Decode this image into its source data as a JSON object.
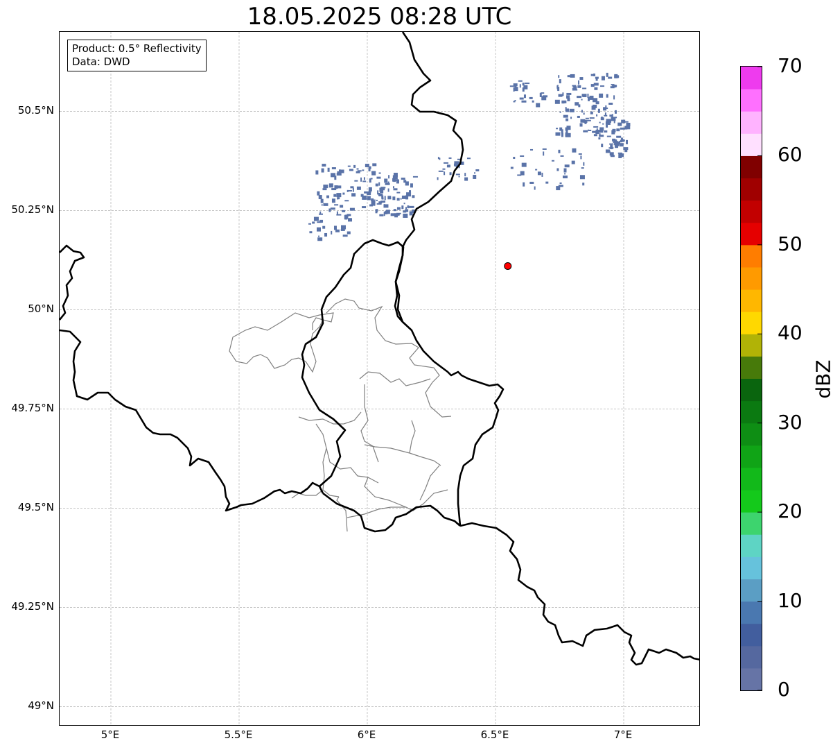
{
  "title": "18.05.2025 08:28 UTC",
  "info": {
    "product": "Product: 0.5° Reflectivity",
    "data_source": "Data: DWD"
  },
  "map": {
    "lon_range": [
      4.8,
      7.3
    ],
    "lat_range": [
      48.95,
      50.7
    ],
    "grid": true,
    "lon_ticks": [
      {
        "value": 5.0,
        "label": "5°E"
      },
      {
        "value": 5.5,
        "label": "5.5°E"
      },
      {
        "value": 6.0,
        "label": "6°E"
      },
      {
        "value": 6.5,
        "label": "6.5°E"
      },
      {
        "value": 7.0,
        "label": "7°E"
      }
    ],
    "lat_ticks": [
      {
        "value": 50.5,
        "label": "50.5°N"
      },
      {
        "value": 50.25,
        "label": "50.25°N"
      },
      {
        "value": 50.0,
        "label": "50°N"
      },
      {
        "value": 49.75,
        "label": "49.75°N"
      },
      {
        "value": 49.5,
        "label": "49.5°N"
      },
      {
        "value": 49.25,
        "label": "49.25°N"
      },
      {
        "value": 49.0,
        "label": "49°N"
      }
    ],
    "radar_site": {
      "lon": 6.548,
      "lat": 50.11,
      "color": "#ff0000"
    },
    "echo_color": "#5a73a8",
    "echo_clusters": [
      {
        "lon": 5.95,
        "lat": 50.31,
        "spread_lon": 0.16,
        "spread_lat": 0.06,
        "count": 90
      },
      {
        "lon": 6.1,
        "lat": 50.29,
        "spread_lon": 0.08,
        "spread_lat": 0.05,
        "count": 60
      },
      {
        "lon": 5.85,
        "lat": 50.22,
        "spread_lon": 0.08,
        "spread_lat": 0.04,
        "count": 30
      },
      {
        "lon": 6.35,
        "lat": 50.36,
        "spread_lon": 0.08,
        "spread_lat": 0.03,
        "count": 25
      },
      {
        "lon": 6.85,
        "lat": 50.52,
        "spread_lon": 0.12,
        "spread_lat": 0.08,
        "count": 120
      },
      {
        "lon": 6.95,
        "lat": 50.44,
        "spread_lon": 0.06,
        "spread_lat": 0.05,
        "count": 50
      },
      {
        "lon": 6.62,
        "lat": 50.55,
        "spread_lon": 0.07,
        "spread_lat": 0.03,
        "count": 25
      },
      {
        "lon": 6.7,
        "lat": 50.36,
        "spread_lon": 0.15,
        "spread_lat": 0.05,
        "count": 35
      }
    ]
  },
  "colorbar": {
    "unit": "dBZ",
    "min": 0,
    "max": 70,
    "ticks": [
      {
        "value": 0,
        "label": "0"
      },
      {
        "value": 10,
        "label": "10"
      },
      {
        "value": 20,
        "label": "20"
      },
      {
        "value": 30,
        "label": "30"
      },
      {
        "value": 40,
        "label": "40"
      },
      {
        "value": 50,
        "label": "50"
      },
      {
        "value": 60,
        "label": "60"
      },
      {
        "value": 70,
        "label": "70"
      }
    ],
    "bins": [
      {
        "from": 0,
        "to": 2.5,
        "color": "#6674a6"
      },
      {
        "from": 2.5,
        "to": 5,
        "color": "#55689f"
      },
      {
        "from": 5,
        "to": 7.5,
        "color": "#425e9e"
      },
      {
        "from": 7.5,
        "to": 10,
        "color": "#4a78b0"
      },
      {
        "from": 10,
        "to": 12.5,
        "color": "#5b9ec4"
      },
      {
        "from": 12.5,
        "to": 15,
        "color": "#66c2dc"
      },
      {
        "from": 15,
        "to": 17.5,
        "color": "#5ed4c4"
      },
      {
        "from": 17.5,
        "to": 20,
        "color": "#3dd46e"
      },
      {
        "from": 20,
        "to": 22.5,
        "color": "#14c91b"
      },
      {
        "from": 22.5,
        "to": 25,
        "color": "#12b91a"
      },
      {
        "from": 25,
        "to": 27.5,
        "color": "#10a416"
      },
      {
        "from": 27.5,
        "to": 30,
        "color": "#0e8e14"
      },
      {
        "from": 30,
        "to": 32.5,
        "color": "#0b7a11"
      },
      {
        "from": 32.5,
        "to": 35,
        "color": "#0a650e"
      },
      {
        "from": 35,
        "to": 37.5,
        "color": "#477a0a"
      },
      {
        "from": 37.5,
        "to": 40,
        "color": "#b1b306"
      },
      {
        "from": 40,
        "to": 42.5,
        "color": "#ffd800"
      },
      {
        "from": 42.5,
        "to": 45,
        "color": "#ffb700"
      },
      {
        "from": 45,
        "to": 47.5,
        "color": "#ff9a00"
      },
      {
        "from": 47.5,
        "to": 50,
        "color": "#ff7d00"
      },
      {
        "from": 50,
        "to": 52.5,
        "color": "#e50000"
      },
      {
        "from": 52.5,
        "to": 55,
        "color": "#c20000"
      },
      {
        "from": 55,
        "to": 57.5,
        "color": "#a00000"
      },
      {
        "from": 57.5,
        "to": 60,
        "color": "#800000"
      },
      {
        "from": 60,
        "to": 62.5,
        "color": "#ffe0ff"
      },
      {
        "from": 62.5,
        "to": 65,
        "color": "#ffb3ff"
      },
      {
        "from": 65,
        "to": 67.5,
        "color": "#ff70ff"
      },
      {
        "from": 67.5,
        "to": 70,
        "color": "#ee3bee"
      }
    ]
  }
}
